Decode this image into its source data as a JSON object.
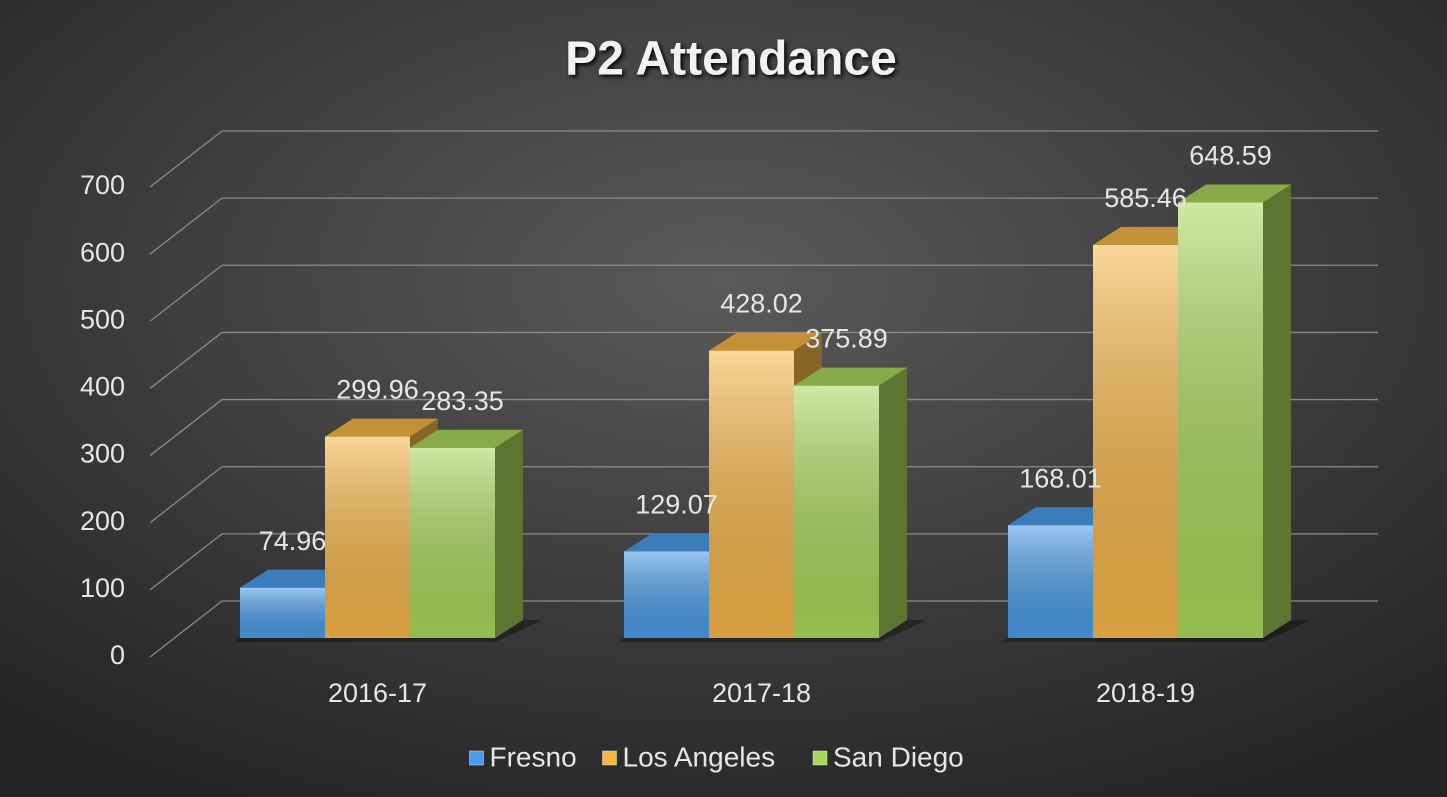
{
  "chart_data": {
    "type": "bar3d",
    "title": "P2 Attendance",
    "categories": [
      "2016-17",
      "2017-18",
      "2018-19"
    ],
    "series": [
      {
        "name": "Fresno",
        "color": "#4a9be8",
        "values": [
          74.96,
          129.07,
          168.01
        ]
      },
      {
        "name": "Los Angeles",
        "color": "#f5b547",
        "values": [
          299.96,
          428.02,
          585.46
        ]
      },
      {
        "name": "San Diego",
        "color": "#a8d65a",
        "values": [
          283.35,
          375.89,
          648.59
        ]
      }
    ],
    "ylim": [
      0,
      700
    ],
    "yticks": [
      0,
      100,
      200,
      300,
      400,
      500,
      600,
      700
    ],
    "grid": true,
    "legend": "bottom"
  }
}
